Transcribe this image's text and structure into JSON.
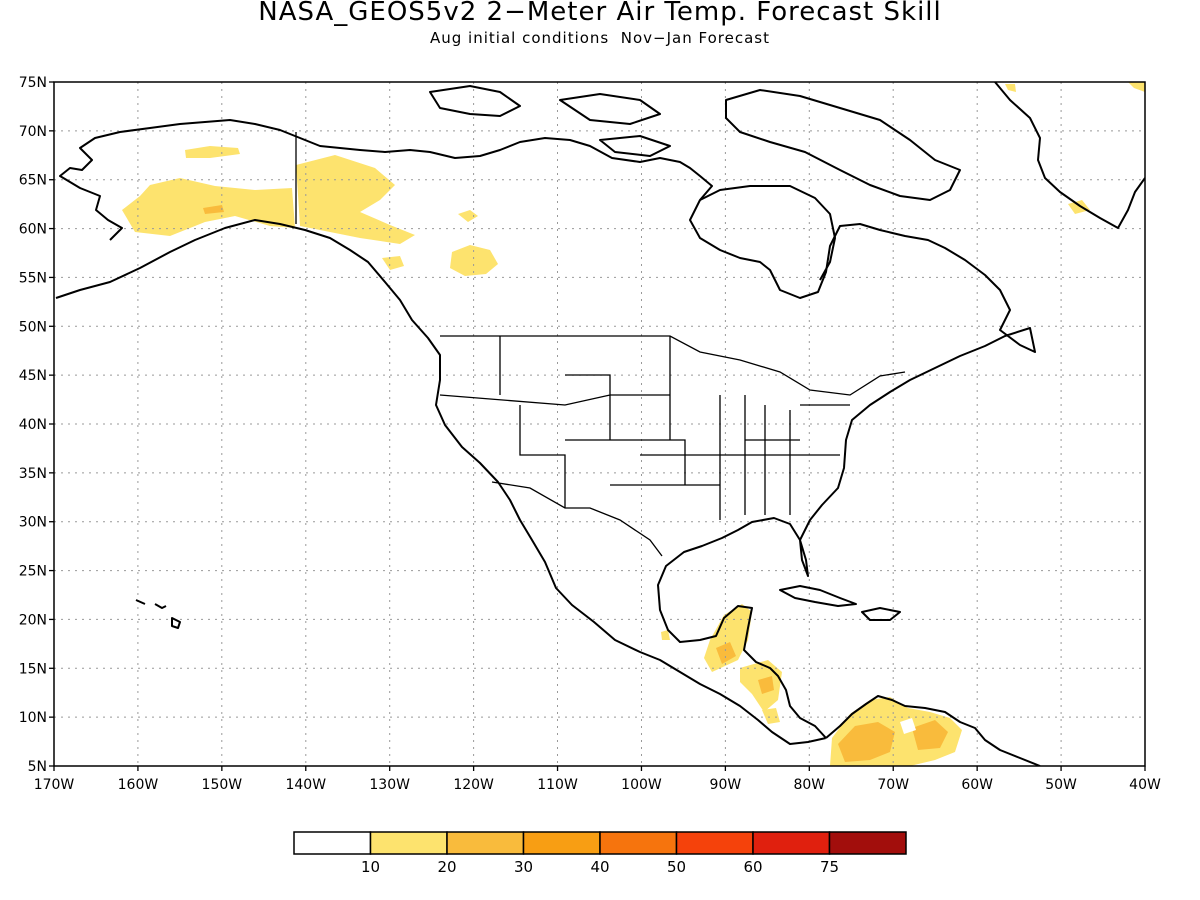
{
  "title": "NASA_GEOS5v2 2−Meter Air Temp. Forecast Skill",
  "subtitle": "Aug initial conditions  Nov−Jan Forecast",
  "map": {
    "lon_range": [
      -170,
      -40
    ],
    "lat_range": [
      5,
      75
    ],
    "grid": true,
    "lon_labels": [
      "170W",
      "160W",
      "150W",
      "140W",
      "130W",
      "120W",
      "110W",
      "100W",
      "90W",
      "80W",
      "70W",
      "60W",
      "50W",
      "40W"
    ],
    "lat_labels": [
      "5N",
      "10N",
      "15N",
      "20N",
      "25N",
      "30N",
      "35N",
      "40N",
      "45N",
      "50N",
      "55N",
      "60N",
      "65N",
      "70N",
      "75N"
    ]
  },
  "colorbar": {
    "colors": [
      "#ffffff",
      "#fde36e",
      "#f9bb3c",
      "#f89e13",
      "#f6740d",
      "#f5420b",
      "#e0200e",
      "#a20e0c"
    ],
    "labels": [
      "10",
      "20",
      "30",
      "40",
      "50",
      "60",
      "75"
    ]
  }
}
